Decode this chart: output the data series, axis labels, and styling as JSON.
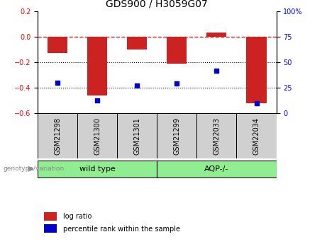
{
  "title": "GDS900 / H3059G07",
  "samples": [
    "GSM21298",
    "GSM21300",
    "GSM21301",
    "GSM21299",
    "GSM22033",
    "GSM22034"
  ],
  "log_ratio": [
    -0.13,
    -0.46,
    -0.1,
    -0.21,
    0.03,
    -0.52
  ],
  "percentile_rank": [
    30,
    13,
    27,
    29,
    42,
    10
  ],
  "groups": [
    {
      "label": "wild type",
      "indices": [
        0,
        1,
        2
      ],
      "color": "#90ee90"
    },
    {
      "label": "AQP-/-",
      "indices": [
        3,
        4,
        5
      ],
      "color": "#90ee90"
    }
  ],
  "bar_color": "#cc2222",
  "dot_color": "#0000cc",
  "ylim_left": [
    -0.6,
    0.2
  ],
  "ylim_right": [
    0,
    100
  ],
  "yticks_left": [
    0.2,
    0,
    -0.2,
    -0.4,
    -0.6
  ],
  "yticks_right": [
    100,
    75,
    50,
    25,
    0
  ],
  "hline_color": "#cc2222",
  "dotted_lines": [
    -0.2,
    -0.4
  ],
  "bar_width": 0.5,
  "background_color": "#ffffff",
  "plot_bg": "#ffffff",
  "sample_box_color": "#d0d0d0",
  "genotype_label": "genotype/variation",
  "legend_labels": [
    "log ratio",
    "percentile rank within the sample"
  ],
  "title_fontsize": 10,
  "tick_fontsize": 7,
  "label_fontsize": 7
}
